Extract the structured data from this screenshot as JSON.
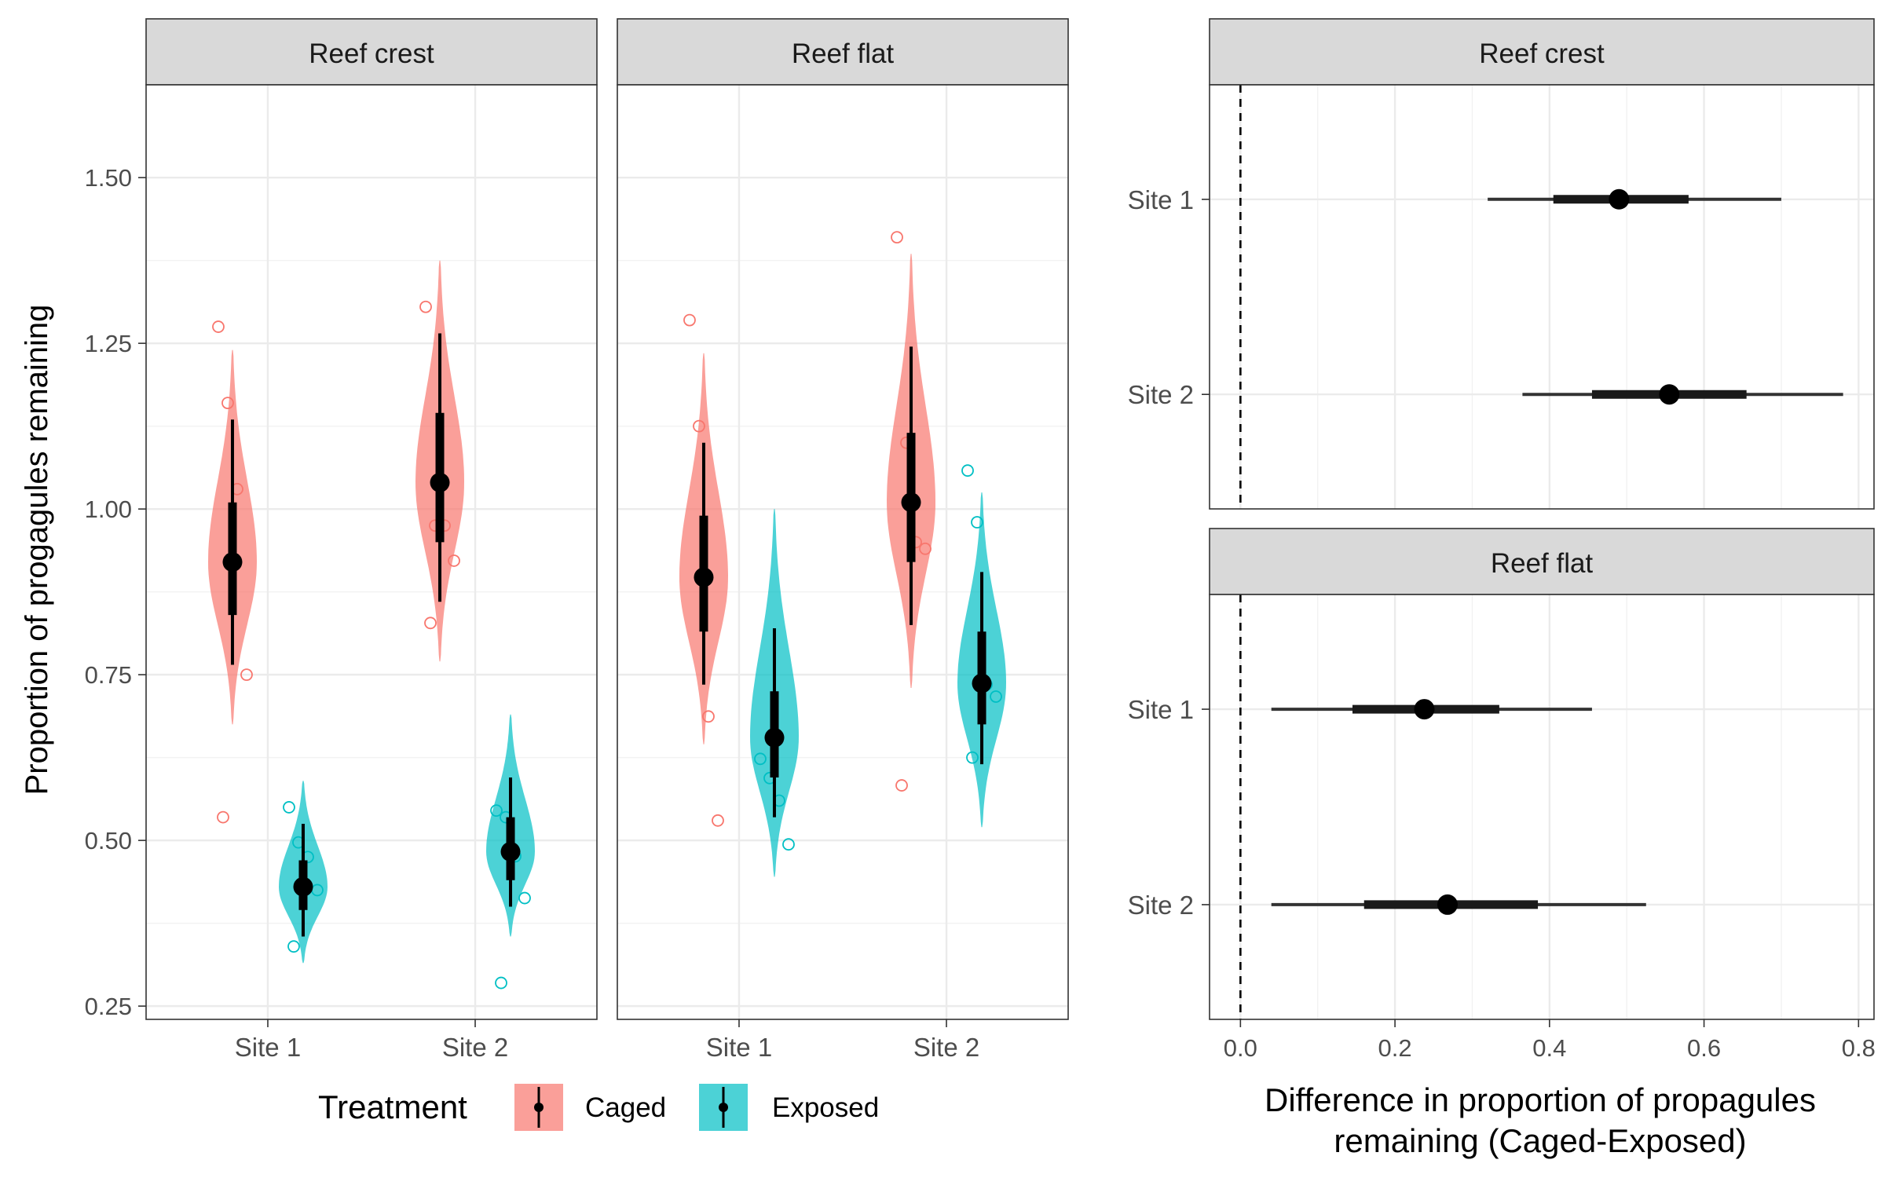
{
  "chart_data": [
    {
      "type": "violin",
      "ylabel": "Proportion of progagules remaining",
      "xlabel": "",
      "ylim": [
        0.23,
        1.64
      ],
      "yticks": [
        "0.25",
        "0.50",
        "0.75",
        "1.00",
        "1.25",
        "1.50"
      ],
      "categories": [
        "Site 1",
        "Site 2"
      ],
      "legend": {
        "title": "Treatment",
        "placement": "bottom",
        "entries": [
          "Caged",
          "Exposed"
        ]
      },
      "colors": {
        "Caged": "#f8766d",
        "Exposed": "#00bfc4"
      },
      "grid": true,
      "facets": [
        {
          "title": "Reef crest",
          "groups": [
            {
              "site": "Site 1",
              "treatment": "Caged",
              "median": 0.92,
              "q_inner": [
                0.84,
                1.01
              ],
              "q_outer": [
                0.765,
                1.135
              ],
              "range": [
                0.675,
                1.24
              ],
              "points": [
                1.275,
                1.16,
                1.03,
                0.75,
                0.535
              ]
            },
            {
              "site": "Site 1",
              "treatment": "Exposed",
              "median": 0.43,
              "q_inner": [
                0.395,
                0.47
              ],
              "q_outer": [
                0.355,
                0.525
              ],
              "range": [
                0.315,
                0.59
              ],
              "points": [
                0.55,
                0.497,
                0.475,
                0.425,
                0.34
              ]
            },
            {
              "site": "Site 2",
              "treatment": "Caged",
              "median": 1.04,
              "q_inner": [
                0.95,
                1.145
              ],
              "q_outer": [
                0.86,
                1.265
              ],
              "range": [
                0.77,
                1.375
              ],
              "points": [
                1.305,
                0.975,
                0.975,
                0.922,
                0.828
              ]
            },
            {
              "site": "Site 2",
              "treatment": "Exposed",
              "median": 0.483,
              "q_inner": [
                0.44,
                0.535
              ],
              "q_outer": [
                0.4,
                0.595
              ],
              "range": [
                0.355,
                0.69
              ],
              "points": [
                0.545,
                0.535,
                0.476,
                0.413,
                0.285
              ]
            }
          ]
        },
        {
          "title": "Reef flat",
          "groups": [
            {
              "site": "Site 1",
              "treatment": "Caged",
              "median": 0.897,
              "q_inner": [
                0.815,
                0.99
              ],
              "q_outer": [
                0.735,
                1.1
              ],
              "range": [
                0.645,
                1.235
              ],
              "points": [
                1.285,
                1.125,
                0.687,
                0.53
              ]
            },
            {
              "site": "Site 1",
              "treatment": "Exposed",
              "median": 0.655,
              "q_inner": [
                0.595,
                0.725
              ],
              "q_outer": [
                0.535,
                0.82
              ],
              "range": [
                0.445,
                1.0
              ],
              "points": [
                0.623,
                0.594,
                0.56,
                0.494
              ]
            },
            {
              "site": "Site 2",
              "treatment": "Caged",
              "median": 1.01,
              "q_inner": [
                0.92,
                1.115
              ],
              "q_outer": [
                0.825,
                1.245
              ],
              "range": [
                0.73,
                1.385
              ],
              "points": [
                1.41,
                1.1,
                0.95,
                0.94,
                0.583
              ]
            },
            {
              "site": "Site 2",
              "treatment": "Exposed",
              "median": 0.737,
              "q_inner": [
                0.675,
                0.815
              ],
              "q_outer": [
                0.615,
                0.905
              ],
              "range": [
                0.52,
                1.025
              ],
              "points": [
                1.058,
                0.98,
                0.735,
                0.717,
                0.625
              ]
            }
          ]
        }
      ]
    },
    {
      "type": "pointrange",
      "xlabel_line1": "Difference in proportion of propagules",
      "xlabel_line2": "remaining (Caged-Exposed)",
      "ylabel": "",
      "xlim": [
        -0.04,
        0.82
      ],
      "xticks": [
        "0.0",
        "0.2",
        "0.4",
        "0.6",
        "0.8"
      ],
      "reference_line": 0,
      "categories": [
        "Site 1",
        "Site 2"
      ],
      "grid": true,
      "facets": [
        {
          "title": "Reef crest",
          "estimates": [
            {
              "site": "Site 1",
              "median": 0.49,
              "inner": [
                0.405,
                0.58
              ],
              "outer": [
                0.32,
                0.7
              ]
            },
            {
              "site": "Site 2",
              "median": 0.555,
              "inner": [
                0.455,
                0.655
              ],
              "outer": [
                0.365,
                0.78
              ]
            }
          ]
        },
        {
          "title": "Reef flat",
          "estimates": [
            {
              "site": "Site 1",
              "median": 0.238,
              "inner": [
                0.145,
                0.335
              ],
              "outer": [
                0.04,
                0.455
              ]
            },
            {
              "site": "Site 2",
              "median": 0.268,
              "inner": [
                0.16,
                0.385
              ],
              "outer": [
                0.04,
                0.525
              ]
            }
          ]
        }
      ]
    }
  ]
}
